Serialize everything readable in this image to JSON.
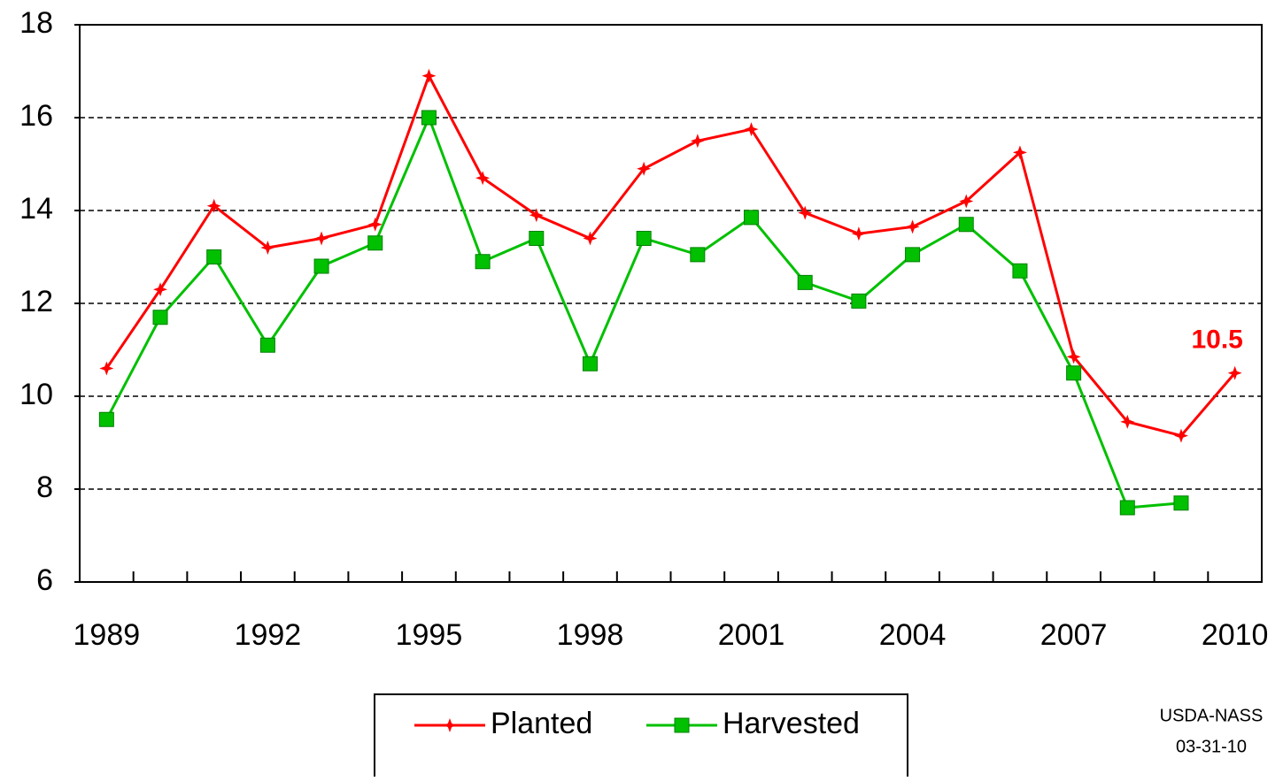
{
  "chart_data": {
    "type": "line",
    "categories": [
      "1989",
      null,
      null,
      "1992",
      null,
      null,
      "1995",
      null,
      null,
      "1998",
      null,
      null,
      "2001",
      null,
      null,
      "2004",
      null,
      null,
      "2007",
      null,
      null,
      "2010"
    ],
    "series": [
      {
        "name": "Planted",
        "color": "#ff0000",
        "marker": "star",
        "values": [
          10.6,
          12.3,
          14.1,
          13.2,
          13.4,
          13.7,
          16.9,
          14.7,
          13.9,
          13.4,
          14.9,
          15.5,
          15.75,
          13.95,
          13.5,
          13.65,
          14.2,
          15.25,
          10.85,
          9.45,
          9.15,
          10.5
        ],
        "value_labels": [
          null,
          null,
          null,
          null,
          null,
          null,
          null,
          null,
          null,
          null,
          null,
          null,
          null,
          null,
          null,
          null,
          null,
          null,
          null,
          null,
          null,
          "10.5"
        ]
      },
      {
        "name": "Harvested",
        "color": "#00c000",
        "marker": "square",
        "values": [
          9.5,
          11.7,
          13.0,
          11.1,
          12.8,
          13.3,
          16.0,
          12.9,
          13.4,
          10.7,
          13.4,
          13.05,
          13.85,
          12.45,
          12.05,
          13.05,
          13.7,
          12.7,
          10.5,
          7.6,
          7.7,
          null
        ]
      }
    ],
    "ylim": [
      6,
      18
    ],
    "yticks": [
      6,
      8,
      10,
      12,
      14,
      16,
      18
    ],
    "grid": true,
    "legend": "bottom",
    "source": [
      "USDA-NASS",
      "03-31-10"
    ]
  }
}
